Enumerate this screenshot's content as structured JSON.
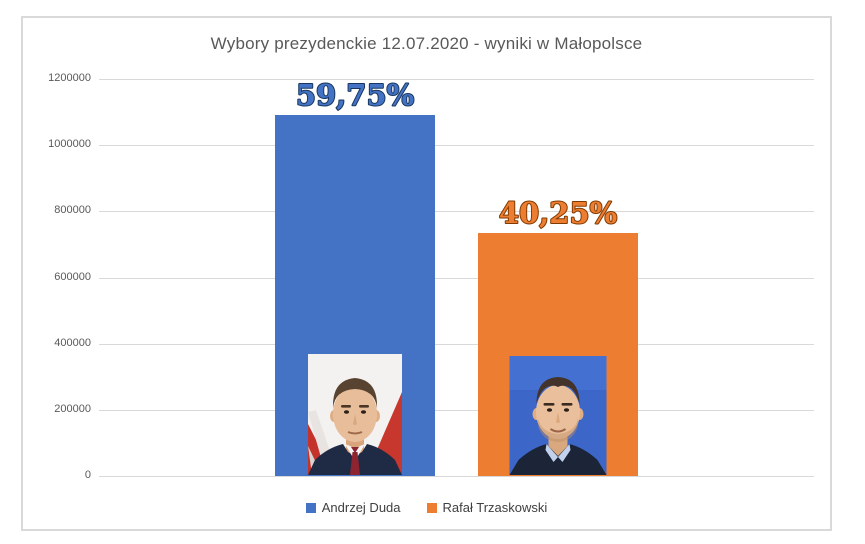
{
  "title": "Wybory prezydenckie 12.07.2020 - wyniki w Małopolsce",
  "chart_data": {
    "type": "bar",
    "title": "Wybory prezydenckie 12.07.2020 - wyniki w Małopolsce",
    "categories": [
      "Andrzej Duda",
      "Rafał Trzaskowski"
    ],
    "series": [
      {
        "name": "Andrzej Duda",
        "value": 1090000,
        "percent_label": "59,75%",
        "color": "#4472C4",
        "label_outline": "#17375E"
      },
      {
        "name": "Rafał Trzaskowski",
        "value": 735000,
        "percent_label": "40,25%",
        "color": "#ED7D31",
        "label_outline": "#7F3A00"
      }
    ],
    "ylim": [
      0,
      1200000
    ],
    "ytick_step": 200000,
    "yticks": [
      "1200000",
      "1000000",
      "800000",
      "600000",
      "400000",
      "200000",
      "0"
    ],
    "grid": true,
    "legend_position": "bottom"
  },
  "legend": {
    "items": [
      {
        "label": "Andrzej Duda",
        "color": "#4472C4"
      },
      {
        "label": "Rafał Trzaskowski",
        "color": "#ED7D31"
      }
    ]
  },
  "portraits": {
    "duda": "andrzej-duda-portrait",
    "trzaskowski": "rafal-trzaskowski-portrait"
  },
  "colors": {
    "background": "#FFFFFF",
    "chart_border": "#D9D9D9",
    "grid": "#D9D9D9",
    "title_text": "#595959",
    "axis_text": "#595959",
    "legend_text": "#404040"
  }
}
